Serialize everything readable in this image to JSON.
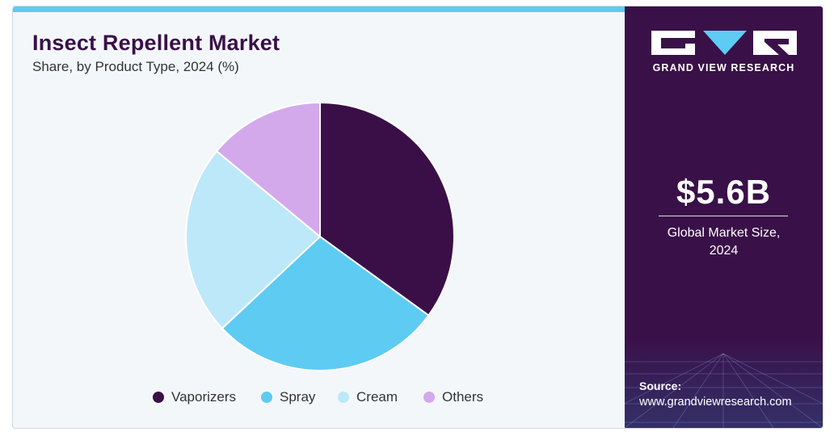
{
  "header": {
    "title": "Insect Repellent Market",
    "subtitle": "Share, by Product Type, 2024 (%)"
  },
  "chart_data": {
    "type": "pie",
    "title": "Insect Repellent Market",
    "subtitle": "Share, by Product Type, 2024 (%)",
    "categories": [
      "Vaporizers",
      "Spray",
      "Cream",
      "Others"
    ],
    "values": [
      35,
      28,
      23,
      14
    ],
    "colors": [
      "#3a0f48",
      "#5ecbf3",
      "#bde8f9",
      "#d4a9ec"
    ],
    "start_angle_deg": 0,
    "direction": "clockwise",
    "legend": "bottom",
    "data_labels": false
  },
  "sidebar": {
    "brand": "GRAND VIEW RESEARCH",
    "logo_icon": "gvr-logo-icon",
    "market_size": "$5.6B",
    "market_caption_line1": "Global Market Size,",
    "market_caption_line2": "2024",
    "source_label": "Source:",
    "source_url": "www.grandviewresearch.com"
  },
  "colors": {
    "accent_bar": "#5ecbf3",
    "sidebar_bg": "#3a1048",
    "title": "#3a0f48"
  }
}
